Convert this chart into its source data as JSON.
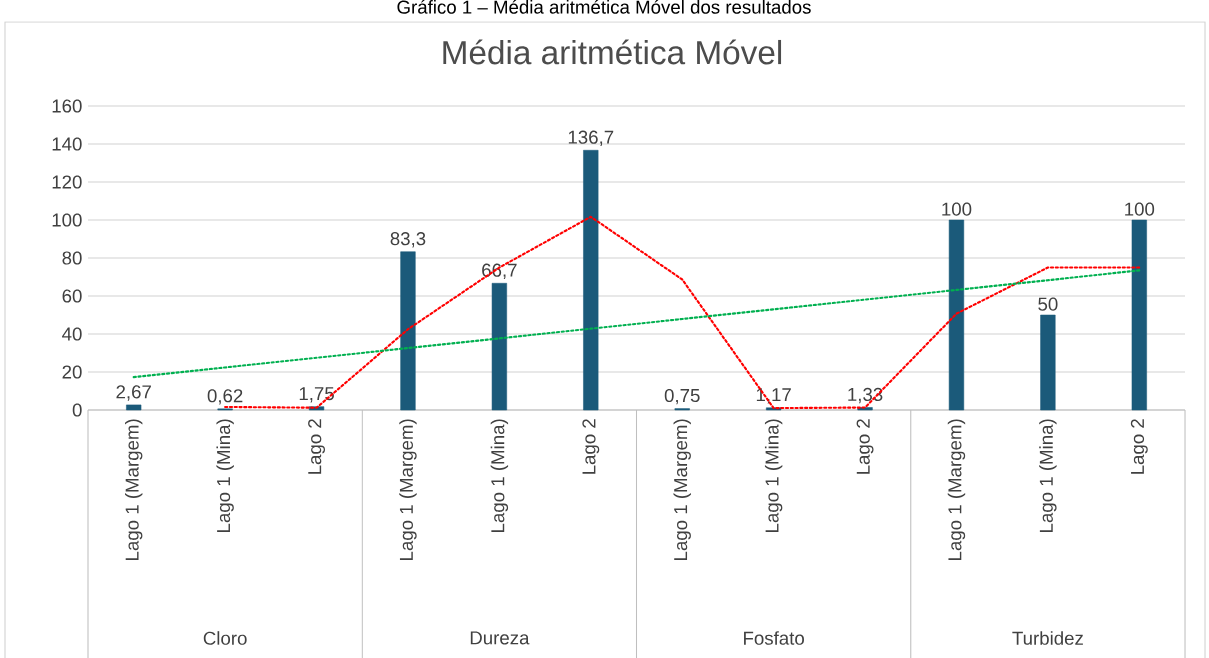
{
  "chart_data": {
    "type": "bar",
    "title": "Média aritmética Móvel",
    "categories": [
      "Lago 1 (Margem)",
      "Lago 1 (Mina)",
      "Lago 2",
      "Lago 1 (Margem)",
      "Lago 1 (Mina)",
      "Lago 2",
      "Lago 1 (Margem)",
      "Lago 1 (Mina)",
      "Lago 2",
      "Lago 1 (Margem)",
      "Lago 1 (Mina)",
      "Lago 2"
    ],
    "series": [
      {
        "color": "#1b5a7a",
        "values": [
          2.67,
          0.62,
          1.75,
          83.3,
          66.7,
          136.7,
          0.75,
          1.17,
          1.33,
          100,
          50,
          100
        ],
        "value_labels": [
          "2,67",
          "0,62",
          "1,75",
          "83,3",
          "66,7",
          "136,7",
          "0,75",
          "1,17",
          "1,33",
          "100",
          "50",
          "100"
        ]
      },
      {
        "type": "line",
        "color": "#ff0000",
        "line_style": "dotted",
        "values": [
          null,
          1.6,
          1.2,
          42.5,
          75,
          101.7,
          68.7,
          1.0,
          1.3,
          50.7,
          75,
          75
        ]
      },
      {
        "type": "line",
        "color": "#00b050",
        "line_style": "dotted",
        "values": [
          17.3,
          22.4,
          27.5,
          32.6,
          37.7,
          42.8,
          47.9,
          53.0,
          58.1,
          63.2,
          68.3,
          73.5
        ]
      }
    ],
    "ylim": [
      0,
      160
    ],
    "yticks": [
      0,
      20,
      40,
      60,
      80,
      100,
      120,
      140,
      160
    ],
    "grid": "y",
    "marker": "none",
    "annotations": [
      "Gráfico 1 – Média aritmética Móvel dos resultados",
      "Cloro",
      "Dureza",
      "Fosfato",
      "Turbidez"
    ]
  }
}
